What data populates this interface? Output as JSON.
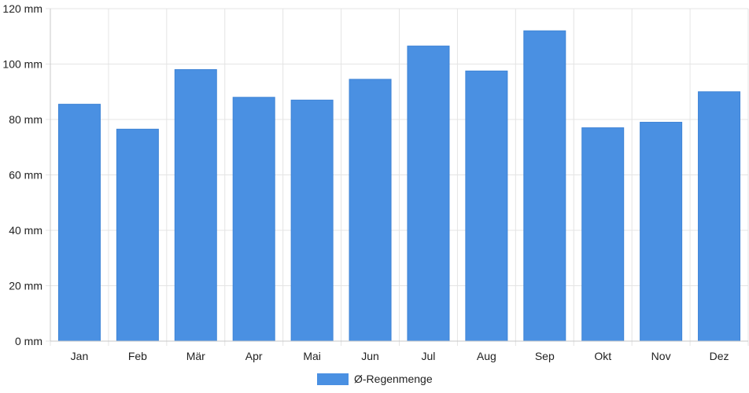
{
  "chart_data": {
    "type": "bar",
    "categories": [
      "Jan",
      "Feb",
      "Mär",
      "Apr",
      "Mai",
      "Jun",
      "Jul",
      "Aug",
      "Sep",
      "Okt",
      "Nov",
      "Dez"
    ],
    "series": [
      {
        "name": "Ø-Regenmenge",
        "values": [
          85.5,
          76.5,
          98,
          88,
          87,
          94.5,
          106.5,
          97.5,
          112,
          77,
          79,
          90
        ],
        "color": "#4a90e2"
      }
    ],
    "yticks": [
      "0 mm",
      "20 mm",
      "40 mm",
      "60 mm",
      "80 mm",
      "100 mm",
      "120 mm"
    ],
    "ylim": [
      0,
      120
    ],
    "unit": "mm",
    "grid": true,
    "legend_position": "bottom-center"
  }
}
